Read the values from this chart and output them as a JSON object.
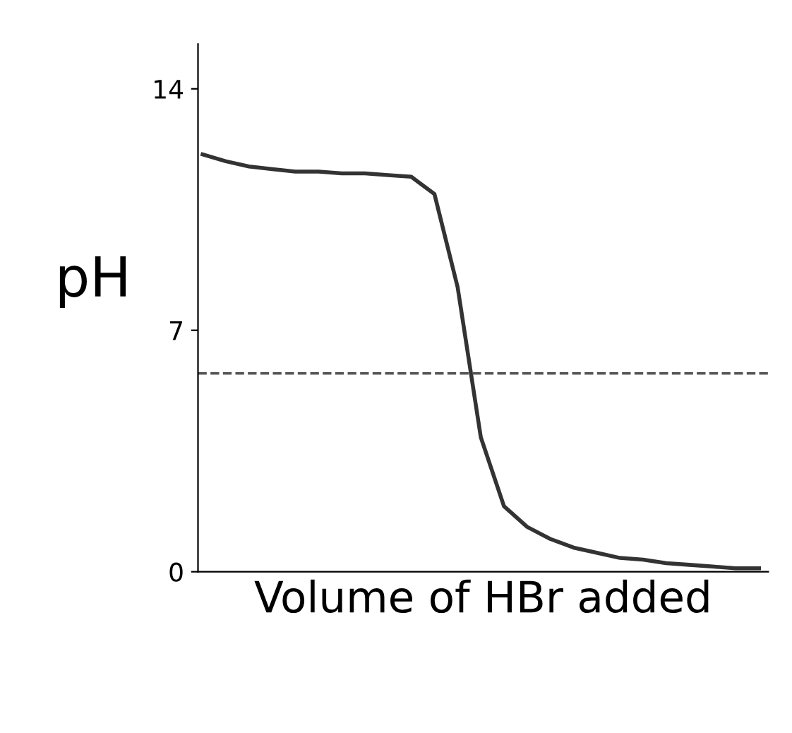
{
  "chart_data": {
    "type": "line",
    "xlabel": "Volume of HBr added",
    "ylabel": "pH",
    "categories": [
      null,
      null,
      null,
      null,
      null,
      null,
      null,
      null,
      null,
      null,
      null,
      null,
      null,
      null,
      null,
      null,
      null,
      null,
      null,
      null,
      null,
      null,
      null,
      null,
      null
    ],
    "series": [
      {
        "color": "#333333",
        "values": [
          12.1,
          11.9,
          11.75,
          11.67,
          11.6,
          11.6,
          11.55,
          11.55,
          11.5,
          11.45,
          10.95,
          8.25,
          3.9,
          1.9,
          1.3,
          0.95,
          0.7,
          0.55,
          0.4,
          0.35,
          0.25,
          0.2,
          0.15,
          0.1,
          0.1
        ]
      }
    ],
    "ylim": [
      0,
      15.3
    ],
    "yticks": [
      0,
      7,
      14
    ],
    "ref_lines": [
      {
        "axis": "y",
        "value": 5.75,
        "line_style": "dashed",
        "color": "#555555"
      }
    ],
    "tick_labels": "y",
    "grid": false,
    "marker": "none",
    "line_style": "solid",
    "legend": false
  }
}
